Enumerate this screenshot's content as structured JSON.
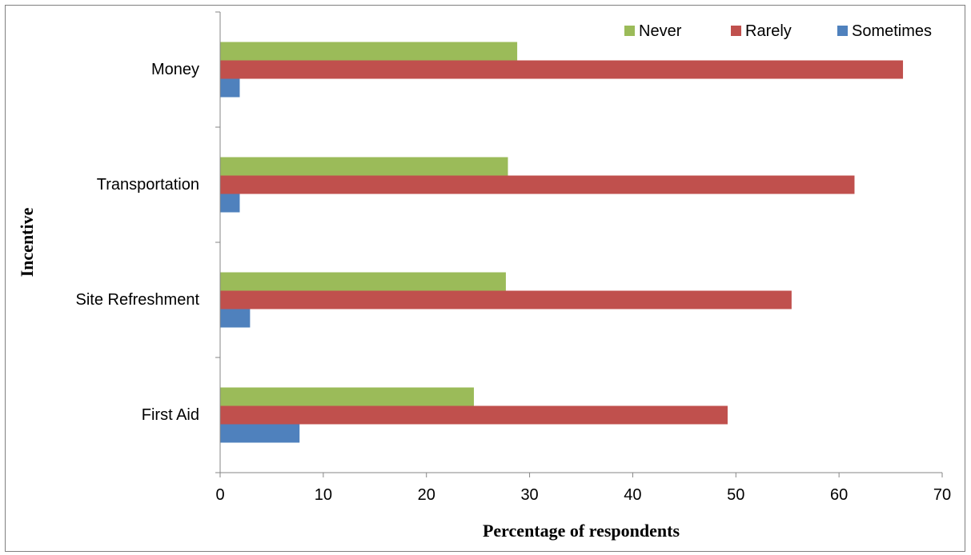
{
  "chart_data": {
    "type": "bar",
    "orientation": "horizontal",
    "title": "",
    "xlabel": "Percentage of respondents",
    "ylabel": "Incentive",
    "categories": [
      "First Aid",
      "Site Refreshment",
      "Transportation",
      "Money"
    ],
    "series": [
      {
        "name": "Never",
        "color": "#9bbb59",
        "values": [
          24.6,
          27.7,
          27.9,
          28.8
        ]
      },
      {
        "name": "Rarely",
        "color": "#c0504d",
        "values": [
          49.2,
          55.4,
          61.5,
          66.2
        ]
      },
      {
        "name": "Sometimes",
        "color": "#4f81bd",
        "values": [
          7.7,
          2.9,
          1.9,
          1.9
        ]
      }
    ],
    "xlim": [
      0,
      70
    ],
    "xticks": [
      0,
      10,
      20,
      30,
      40,
      50,
      60,
      70
    ],
    "grid": false,
    "legend_position": "top-right"
  }
}
